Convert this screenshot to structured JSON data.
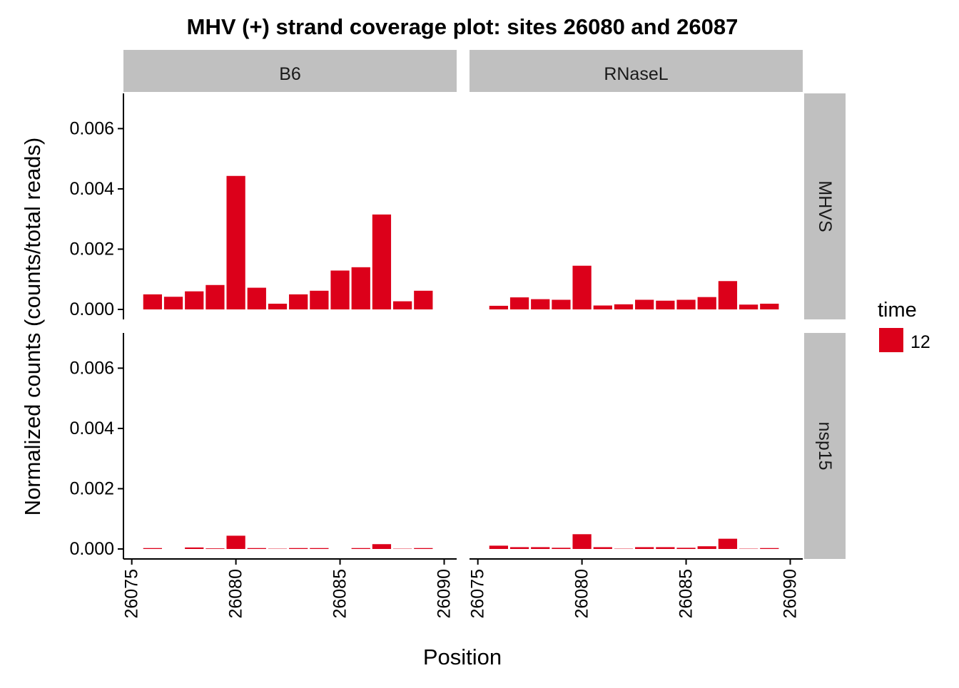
{
  "chart_data": {
    "type": "bar",
    "title": "MHV (+) strand coverage plot: sites 26080 and 26087",
    "xlabel": "Position",
    "ylabel": "Normalized counts (counts/total reads)",
    "xlim": [
      26074.6,
      26090.6
    ],
    "ylim": [
      0,
      0.0075
    ],
    "xticks": [
      "26075",
      "26080",
      "26085",
      "26090"
    ],
    "yticks": [
      "0.000",
      "0.002",
      "0.004",
      "0.006"
    ],
    "grid": false,
    "legend": {
      "title": "time",
      "position": "right",
      "entries": [
        {
          "label": "12",
          "color": "#DC001A"
        }
      ]
    },
    "columns": [
      "B6",
      "RNaseL"
    ],
    "rows": [
      "MHVS",
      "nsp15"
    ],
    "x": [
      26076,
      26077,
      26078,
      26079,
      26080,
      26081,
      26082,
      26083,
      26084,
      26085,
      26086,
      26087,
      26088,
      26089
    ],
    "panels": [
      {
        "column": "B6",
        "row": "MHVS",
        "values": [
          0.0005,
          0.00042,
          0.0006,
          0.00081,
          0.00443,
          0.00072,
          0.00019,
          0.0005,
          0.00062,
          0.00129,
          0.0014,
          0.00315,
          0.00027,
          0.00062
        ]
      },
      {
        "column": "RNaseL",
        "row": "MHVS",
        "values": [
          0.00012,
          0.0004,
          0.00034,
          0.00032,
          0.00145,
          0.00013,
          0.00017,
          0.00032,
          0.00029,
          0.00032,
          0.00041,
          0.00094,
          0.00016,
          0.00019
        ]
      },
      {
        "column": "B6",
        "row": "nsp15",
        "values": [
          3e-05,
          0.0,
          5e-05,
          2e-05,
          0.00044,
          3e-05,
          1e-05,
          3e-05,
          3e-05,
          0.0,
          3e-05,
          0.00016,
          1e-05,
          3e-05
        ]
      },
      {
        "column": "RNaseL",
        "row": "nsp15",
        "values": [
          0.00011,
          6e-05,
          6e-05,
          4e-05,
          0.00049,
          6e-05,
          1e-05,
          6e-05,
          6e-05,
          4e-05,
          9e-05,
          0.00034,
          1e-05,
          3e-05
        ]
      }
    ]
  },
  "colors": {
    "bar": "#DC001A",
    "strip": "#C0C0C0",
    "axis": "#000000"
  }
}
